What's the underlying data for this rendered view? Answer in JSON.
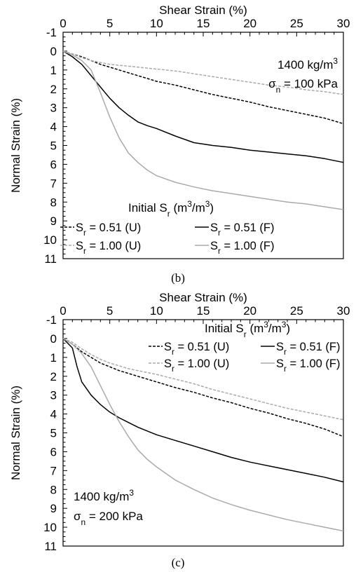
{
  "chart_data": [
    {
      "type": "line",
      "panel_label": "(b)",
      "xlabel": "Shear Strain (%)",
      "ylabel": "Normal Strain (%)",
      "xlim": [
        0,
        30
      ],
      "ylim": [
        -1,
        11
      ],
      "y_inverted": true,
      "x_axis_position": "top",
      "xticks": [
        0,
        5,
        10,
        15,
        20,
        25,
        30
      ],
      "yticks": [
        -1,
        0,
        1,
        2,
        3,
        4,
        5,
        6,
        7,
        8,
        9,
        10,
        11
      ],
      "grid": false,
      "legend_title": {
        "pre": "Initial S",
        "sub": "r",
        "post": " (m",
        "sup1": "3",
        "mid": "/m",
        "sup2": "3",
        "end": ")"
      },
      "legend_placement": "bottom-left",
      "annotation": {
        "density_num": "1400 kg/m",
        "density_sup": "3",
        "stress_pre": "σ",
        "stress_sub": "n",
        "stress_post": " = 100 kPa",
        "placement": "top-right"
      },
      "series": [
        {
          "name_pre": "S",
          "name_sub": "r",
          "name_post": " = 0.51 (U)",
          "color": "#000000",
          "dash": "dashed",
          "x": [
            0,
            1,
            2,
            3,
            4,
            5,
            6,
            7,
            8,
            9,
            10,
            12,
            14,
            16,
            18,
            20,
            22,
            24,
            26,
            28,
            30
          ],
          "y": [
            0,
            0.15,
            0.3,
            0.5,
            0.7,
            0.85,
            1.0,
            1.15,
            1.3,
            1.45,
            1.6,
            1.8,
            2.05,
            2.3,
            2.5,
            2.7,
            2.95,
            3.15,
            3.35,
            3.55,
            3.85
          ]
        },
        {
          "name_pre": "S",
          "name_sub": "r",
          "name_post": " = 0.51 (F)",
          "color": "#000000",
          "dash": "solid",
          "x": [
            0,
            1,
            2,
            3,
            4,
            5,
            6,
            7,
            8,
            9,
            10,
            12,
            14,
            16,
            18,
            20,
            22,
            24,
            26,
            28,
            30
          ],
          "y": [
            0,
            0.3,
            0.7,
            1.3,
            1.9,
            2.5,
            3.0,
            3.4,
            3.75,
            3.95,
            4.1,
            4.5,
            4.85,
            5.0,
            5.1,
            5.25,
            5.35,
            5.45,
            5.55,
            5.7,
            5.9
          ]
        },
        {
          "name_pre": "S",
          "name_sub": "r",
          "name_post": " = 1.00 (U)",
          "color": "#aaaaaa",
          "dash": "dashed",
          "x": [
            0,
            1,
            2,
            3,
            4,
            5,
            6,
            7,
            8,
            9,
            10,
            12,
            14,
            16,
            18,
            20,
            22,
            24,
            26,
            28,
            30
          ],
          "y": [
            0,
            0.15,
            0.35,
            0.5,
            0.6,
            0.7,
            0.75,
            0.8,
            0.85,
            0.9,
            0.95,
            1.05,
            1.2,
            1.35,
            1.5,
            1.65,
            1.8,
            1.9,
            2.05,
            2.15,
            2.3
          ]
        },
        {
          "name_pre": "S",
          "name_sub": "r",
          "name_post": " = 1.00 (F)",
          "color": "#aaaaaa",
          "dash": "solid",
          "x": [
            0,
            1,
            2,
            3,
            4,
            5,
            6,
            7,
            8,
            9,
            10,
            12,
            14,
            16,
            18,
            20,
            22,
            24,
            26,
            28,
            30
          ],
          "y": [
            0,
            0.2,
            0.5,
            1.0,
            2.2,
            3.5,
            4.6,
            5.4,
            5.9,
            6.3,
            6.6,
            6.95,
            7.2,
            7.4,
            7.55,
            7.7,
            7.85,
            8.0,
            8.1,
            8.25,
            8.4
          ]
        }
      ]
    },
    {
      "type": "line",
      "panel_label": "(c)",
      "xlabel": "Shear Strain (%)",
      "ylabel": "Normal Strain (%)",
      "xlim": [
        0,
        30
      ],
      "ylim": [
        -1,
        11
      ],
      "y_inverted": true,
      "x_axis_position": "top",
      "xticks": [
        0,
        5,
        10,
        15,
        20,
        25,
        30
      ],
      "yticks": [
        -1,
        0,
        1,
        2,
        3,
        4,
        5,
        6,
        7,
        8,
        9,
        10,
        11
      ],
      "grid": false,
      "legend_title": {
        "pre": "Initial S",
        "sub": "r",
        "post": " (m",
        "sup1": "3",
        "mid": "/m",
        "sup2": "3",
        "end": ")"
      },
      "legend_placement": "top-right",
      "annotation": {
        "density_num": "1400 kg/m",
        "density_sup": "3",
        "stress_pre": "σ",
        "stress_sub": "n",
        "stress_post": " = 200 kPa",
        "placement": "bottom-left"
      },
      "series": [
        {
          "name_pre": "S",
          "name_sub": "r",
          "name_post": " = 0.51 (U)",
          "color": "#000000",
          "dash": "dashed",
          "x": [
            0,
            1,
            2,
            3,
            4,
            5,
            6,
            7,
            8,
            9,
            10,
            12,
            14,
            16,
            18,
            20,
            22,
            24,
            26,
            28,
            30
          ],
          "y": [
            0,
            0.3,
            0.7,
            1.0,
            1.3,
            1.5,
            1.7,
            1.85,
            2.0,
            2.15,
            2.3,
            2.6,
            2.85,
            3.15,
            3.4,
            3.7,
            3.95,
            4.25,
            4.5,
            4.8,
            5.2
          ]
        },
        {
          "name_pre": "S",
          "name_sub": "r",
          "name_post": " = 0.51 (F)",
          "color": "#000000",
          "dash": "solid",
          "x": [
            0,
            1,
            1.5,
            2,
            3,
            4,
            5,
            6,
            7,
            8,
            9,
            10,
            12,
            14,
            16,
            18,
            20,
            22,
            24,
            26,
            28,
            30
          ],
          "y": [
            0,
            0.5,
            1.5,
            2.3,
            3.0,
            3.5,
            3.9,
            4.2,
            4.45,
            4.7,
            4.9,
            5.1,
            5.4,
            5.7,
            6.0,
            6.3,
            6.55,
            6.75,
            6.95,
            7.15,
            7.35,
            7.6
          ]
        },
        {
          "name_pre": "S",
          "name_sub": "r",
          "name_post": " = 1.00 (U)",
          "color": "#aaaaaa",
          "dash": "dashed",
          "x": [
            0,
            1,
            2,
            3,
            4,
            5,
            6,
            7,
            8,
            9,
            10,
            12,
            14,
            16,
            18,
            20,
            22,
            24,
            26,
            28,
            30
          ],
          "y": [
            0,
            0.2,
            0.55,
            0.85,
            1.1,
            1.3,
            1.45,
            1.6,
            1.7,
            1.8,
            1.9,
            2.15,
            2.4,
            2.7,
            2.95,
            3.2,
            3.45,
            3.7,
            3.9,
            4.1,
            4.3
          ]
        },
        {
          "name_pre": "S",
          "name_sub": "r",
          "name_post": " = 1.00 (F)",
          "color": "#aaaaaa",
          "dash": "solid",
          "x": [
            0,
            1,
            2,
            3,
            4,
            5,
            6,
            7,
            8,
            9,
            10,
            12,
            14,
            16,
            18,
            20,
            22,
            24,
            26,
            28,
            30
          ],
          "y": [
            0,
            0.3,
            0.8,
            1.5,
            2.5,
            3.5,
            4.4,
            5.2,
            5.9,
            6.4,
            6.8,
            7.5,
            8.0,
            8.45,
            8.8,
            9.1,
            9.35,
            9.6,
            9.8,
            10.0,
            10.2
          ]
        }
      ]
    }
  ]
}
